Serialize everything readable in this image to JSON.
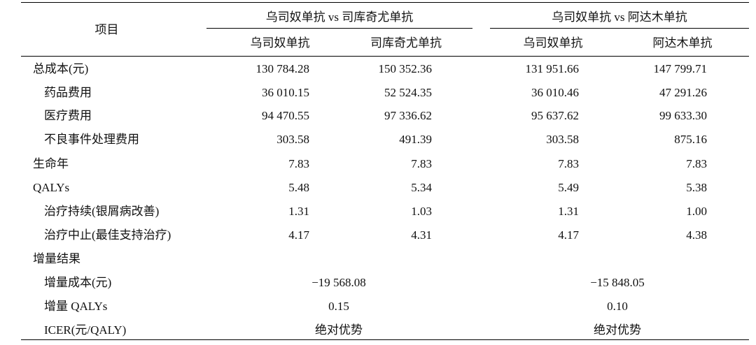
{
  "header": {
    "item_label": "项目",
    "group1": {
      "title": "乌司奴单抗 vs 司库奇尤单抗",
      "col_a": "乌司奴单抗",
      "col_b": "司库奇尤单抗"
    },
    "group2": {
      "title": "乌司奴单抗 vs 阿达木单抗",
      "col_a": "乌司奴单抗",
      "col_b": "阿达木单抗"
    }
  },
  "rows": [
    {
      "label": "总成本(元)",
      "indent": false,
      "values": [
        "130 784.28",
        "150 352.36",
        "131 951.66",
        "147 799.71"
      ]
    },
    {
      "label": "药品费用",
      "indent": true,
      "values": [
        "36 010.15",
        "52 524.35",
        "36 010.46",
        "47 291.26"
      ]
    },
    {
      "label": "医疗费用",
      "indent": true,
      "values": [
        "94 470.55",
        "97 336.62",
        "95 637.62",
        "99 633.30"
      ]
    },
    {
      "label": "不良事件处理费用",
      "indent": true,
      "values": [
        "303.58",
        "491.39",
        "303.58",
        "875.16"
      ]
    },
    {
      "label": "生命年",
      "indent": false,
      "values": [
        "7.83",
        "7.83",
        "7.83",
        "7.83"
      ]
    },
    {
      "label": "QALYs",
      "indent": false,
      "values": [
        "5.48",
        "5.34",
        "5.49",
        "5.38"
      ]
    },
    {
      "label": "治疗持续(银屑病改善)",
      "indent": true,
      "values": [
        "1.31",
        "1.03",
        "1.31",
        "1.00"
      ]
    },
    {
      "label": "治疗中止(最佳支持治疗)",
      "indent": true,
      "values": [
        "4.17",
        "4.31",
        "4.17",
        "4.38"
      ]
    }
  ],
  "incremental": {
    "section_label": "增量结果",
    "rows": [
      {
        "label": "增量成本(元)",
        "values": [
          "−19 568.08",
          "−15 848.05"
        ]
      },
      {
        "label": "增量 QALYs",
        "values": [
          "0.15",
          "0.10"
        ]
      },
      {
        "label": "ICER(元/QALY)",
        "values": [
          "绝对优势",
          "绝对优势"
        ]
      }
    ]
  }
}
